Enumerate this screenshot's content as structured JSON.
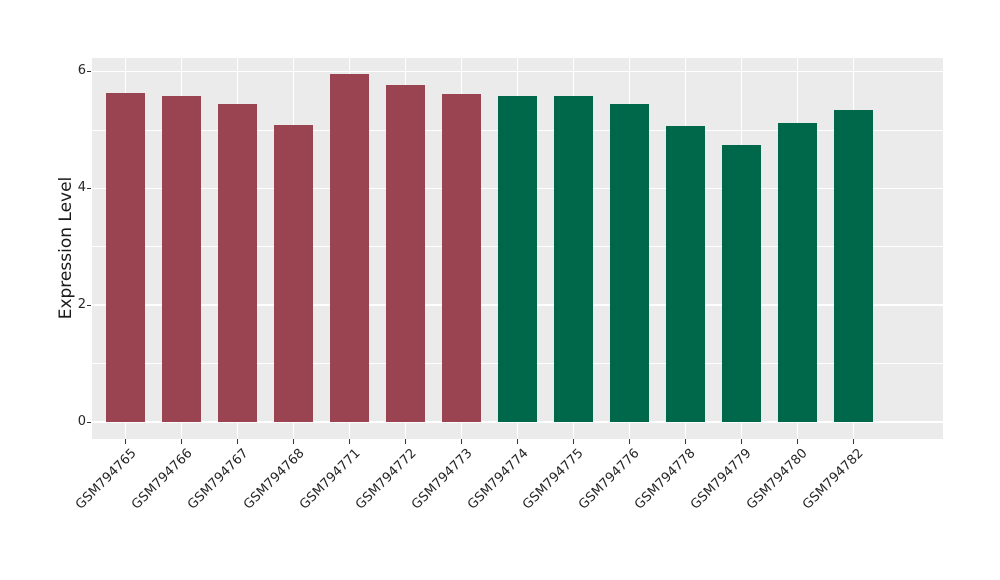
{
  "chart_data": {
    "type": "bar",
    "title": "",
    "xlabel": "",
    "ylabel": "Expression Level",
    "categories": [
      "GSM794765",
      "GSM794766",
      "GSM794767",
      "GSM794768",
      "GSM794771",
      "GSM794772",
      "GSM794773",
      "GSM794774",
      "GSM794775",
      "GSM794776",
      "GSM794778",
      "GSM794779",
      "GSM794780",
      "GSM794782"
    ],
    "values": [
      5.63,
      5.58,
      5.45,
      5.08,
      5.96,
      5.77,
      5.61,
      5.58,
      5.58,
      5.45,
      5.06,
      4.74,
      5.12,
      5.34
    ],
    "bar_colors": [
      "#9b4451",
      "#9b4451",
      "#9b4451",
      "#9b4451",
      "#9b4451",
      "#9b4451",
      "#9b4451",
      "#00684a",
      "#00684a",
      "#00684a",
      "#00684a",
      "#00684a",
      "#00684a",
      "#00684a"
    ],
    "group_colors": {
      "left_group": "#9b4451",
      "right_group": "#00684a"
    },
    "y_major_ticks": [
      0,
      2,
      4,
      6
    ],
    "y_minor_ticks": [
      1,
      3,
      5
    ],
    "ylim": [
      -0.29,
      6.23
    ],
    "grid": "on",
    "legend_position": "none",
    "panel_background": "#ebebeb",
    "grid_color": "#ffffff",
    "tick_label_color": "#262626",
    "bar_width_fraction": 0.7
  }
}
